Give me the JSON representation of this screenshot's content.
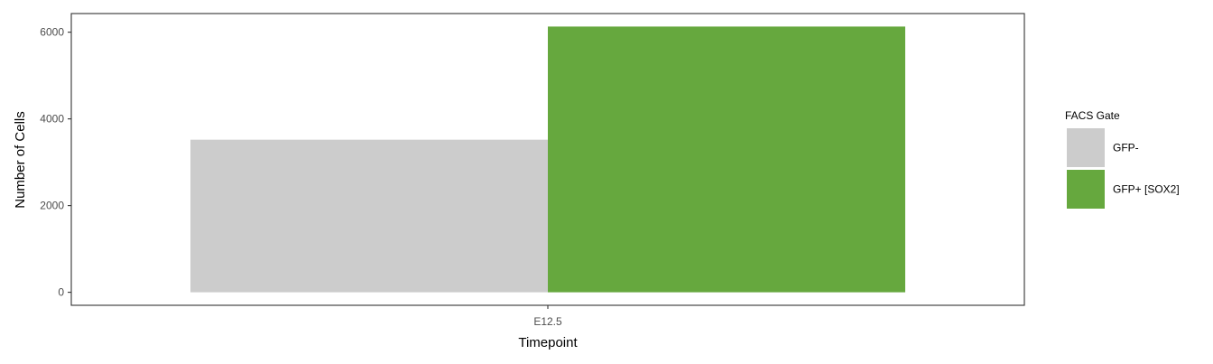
{
  "chart_data": {
    "type": "bar",
    "categories": [
      "E12.5"
    ],
    "series": [
      {
        "name": "GFP-",
        "values": [
          3520
        ],
        "color": "#cccccc"
      },
      {
        "name": "GFP+ [SOX2]",
        "values": [
          6130
        ],
        "color": "#66a83e"
      }
    ],
    "xlabel": "Timepoint",
    "ylabel": "Number of Cells",
    "ylim": [
      -300,
      6430
    ],
    "yticks": [
      0,
      2000,
      4000,
      6000
    ],
    "legend": {
      "title": "FACS Gate",
      "position": "right"
    },
    "grid": false,
    "bar_mode": "dodge"
  }
}
